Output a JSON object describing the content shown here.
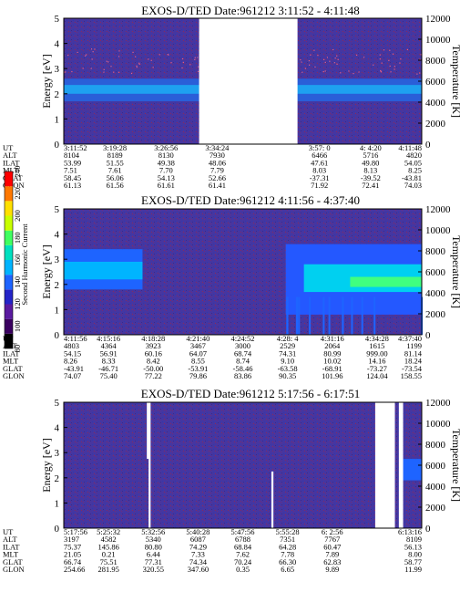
{
  "colorbar": {
    "label": "Second Harmonic Current",
    "ticks": [
      "80",
      "100",
      "120",
      "140",
      "160",
      "180",
      "200",
      "220",
      "240"
    ],
    "colors": [
      "#000000",
      "#3a0060",
      "#5a1aa0",
      "#2424c8",
      "#1e64ff",
      "#00b4ff",
      "#00e0c0",
      "#40ff60",
      "#c8ff00",
      "#ffe000",
      "#ff7800",
      "#ff0000"
    ]
  },
  "table_labels": [
    "UT",
    "ALT",
    "ILAT",
    "MLT",
    "GLAT",
    "GLON"
  ],
  "chart_data": [
    {
      "type": "heatmap",
      "title": "EXOS-D/TED   Date:961212  3:11:52 - 4:11:48",
      "ylabel": "Energy [eV]",
      "ylabel_right": "Temperature [K]",
      "ylim": [
        0,
        5
      ],
      "ylim_right": [
        0,
        12000
      ],
      "y_ticks": [
        "0",
        "1",
        "2",
        "3",
        "4",
        "5"
      ],
      "y_ticks_right": [
        "0",
        "2000",
        "4000",
        "6000",
        "8000",
        "10000",
        "12000"
      ],
      "data_gaps": [
        [
          0.378,
          0.653
        ]
      ],
      "band": {
        "energy_low": 1.7,
        "energy_high": 2.6
      },
      "orbit_columns": [
        {
          "UT": "3:11:52",
          "ALT": "8104",
          "ILAT": "53.99",
          "MLT": "7.51",
          "GLAT": "58.45",
          "GLON": "61.13"
        },
        {
          "UT": "3:19:28",
          "ALT": "8189",
          "ILAT": "51.55",
          "MLT": "7.61",
          "GLAT": "56.06",
          "GLON": "61.56"
        },
        {
          "UT": "3:26:56",
          "ALT": "8130",
          "ILAT": "49.38",
          "MLT": "7.70",
          "GLAT": "54.13",
          "GLON": "61.61"
        },
        {
          "UT": "3:34:24",
          "ALT": "7930",
          "ILAT": "48.06",
          "MLT": "7.79",
          "GLAT": "52.66",
          "GLON": "61.41"
        },
        {
          "UT": "",
          "ALT": "",
          "ILAT": "",
          "MLT": "",
          "GLAT": "",
          "GLON": ""
        },
        {
          "UT": "3:57: 0",
          "ALT": "6466",
          "ILAT": "47.61",
          "MLT": "8.03",
          "GLAT": "-37.31",
          "GLON": "71.92"
        },
        {
          "UT": "4: 4:20",
          "ALT": "5716",
          "ILAT": "49.80",
          "MLT": "8.13",
          "GLAT": "-39.52",
          "GLON": "72.41"
        },
        {
          "UT": "4:11:48",
          "ALT": "4820",
          "ILAT": "54.05",
          "MLT": "8.25",
          "GLAT": "-43.81",
          "GLON": "74.03"
        }
      ]
    },
    {
      "type": "heatmap",
      "title": "EXOS-D/TED   Date:961212  4:11:56 - 4:37:40",
      "ylabel": "Energy [eV]",
      "ylabel_right": "Temperature [K]",
      "ylim": [
        0,
        5
      ],
      "ylim_right": [
        0,
        12000
      ],
      "y_ticks": [
        "0",
        "1",
        "2",
        "3",
        "4",
        "5"
      ],
      "y_ticks_right": [
        "0",
        "2000",
        "4000",
        "6000",
        "8000",
        "10000",
        "12000"
      ],
      "data_gaps": [],
      "band": {
        "energy_low": 1.6,
        "energy_high": 3.4
      },
      "orbit_columns": [
        {
          "UT": "4:11:56",
          "ALT": "4803",
          "ILAT": "54.15",
          "MLT": "8.26",
          "GLAT": "-43.91",
          "GLON": "74.07"
        },
        {
          "UT": "4:15:16",
          "ALT": "4364",
          "ILAT": "56.91",
          "MLT": "8.33",
          "GLAT": "-46.71",
          "GLON": "75.40"
        },
        {
          "UT": "4:18:28",
          "ALT": "3923",
          "ILAT": "60.16",
          "MLT": "8.42",
          "GLAT": "-50.00",
          "GLON": "77.22"
        },
        {
          "UT": "4:21:40",
          "ALT": "3467",
          "ILAT": "64.07",
          "MLT": "8.55",
          "GLAT": "-53.91",
          "GLON": "79.86"
        },
        {
          "UT": "4:24:52",
          "ALT": "3000",
          "ILAT": "68.74",
          "MLT": "8.74",
          "GLAT": "-58.46",
          "GLON": "83.86"
        },
        {
          "UT": "4:28: 4",
          "ALT": "2529",
          "ILAT": "74.31",
          "MLT": "9.10",
          "GLAT": "-63.58",
          "GLON": "90.35"
        },
        {
          "UT": "4:31:16",
          "ALT": "2064",
          "ILAT": "80.99",
          "MLT": "10.02",
          "GLAT": "-68.91",
          "GLON": "101.96"
        },
        {
          "UT": "4:34:28",
          "ALT": "1615",
          "ILAT": "999.00",
          "MLT": "14.16",
          "GLAT": "-73.27",
          "GLON": "124.04"
        },
        {
          "UT": "4:37:40",
          "ALT": "1199",
          "ILAT": "81.14",
          "MLT": "18.24",
          "GLAT": "-73.54",
          "GLON": "158.55"
        }
      ]
    },
    {
      "type": "heatmap",
      "title": "EXOS-D/TED   Date:961212  5:17:56 - 6:17:51",
      "ylabel": "Energy [eV]",
      "ylabel_right": "Temperature [K]",
      "ylim": [
        0,
        5
      ],
      "ylim_right": [
        0,
        12000
      ],
      "y_ticks": [
        "0",
        "1",
        "2",
        "3",
        "4",
        "5"
      ],
      "y_ticks_right": [
        "0",
        "2000",
        "4000",
        "6000",
        "8000",
        "10000",
        "12000"
      ],
      "data_gaps": [
        [
          0.87,
          0.925
        ],
        [
          0.936,
          0.948
        ]
      ],
      "band": null,
      "orbit_columns": [
        {
          "UT": "5:17:56",
          "ALT": "3197",
          "ILAT": "75.37",
          "MLT": "21.05",
          "GLAT": "66.74",
          "GLON": "254.66"
        },
        {
          "UT": "5:25:32",
          "ALT": "4582",
          "ILAT": "145.86",
          "MLT": "0.21",
          "GLAT": "75.51",
          "GLON": "281.95"
        },
        {
          "UT": "5:32:56",
          "ALT": "5340",
          "ILAT": "80.80",
          "MLT": "6.44",
          "GLAT": "77.31",
          "GLON": "320.55"
        },
        {
          "UT": "5:40:28",
          "ALT": "6087",
          "ILAT": "74.29",
          "MLT": "7.33",
          "GLAT": "74.34",
          "GLON": "347.60"
        },
        {
          "UT": "5:47:56",
          "ALT": "6788",
          "ILAT": "68.84",
          "MLT": "7.62",
          "GLAT": "70.24",
          "GLON": "0.35"
        },
        {
          "UT": "5:55:28",
          "ALT": "7351",
          "ILAT": "64.28",
          "MLT": "7.78",
          "GLAT": "66.30",
          "GLON": "6.65"
        },
        {
          "UT": "6: 2:56",
          "ALT": "7767",
          "ILAT": "60.47",
          "MLT": "7.89",
          "GLAT": "62.83",
          "GLON": "9.89"
        },
        {
          "UT": "",
          "ALT": "",
          "ILAT": "",
          "MLT": "",
          "GLAT": "",
          "GLON": ""
        },
        {
          "UT": "6:13:16",
          "ALT": "8109",
          "ILAT": "56.13",
          "MLT": "8.00",
          "GLAT": "58.77",
          "GLON": "11.99"
        }
      ]
    }
  ]
}
